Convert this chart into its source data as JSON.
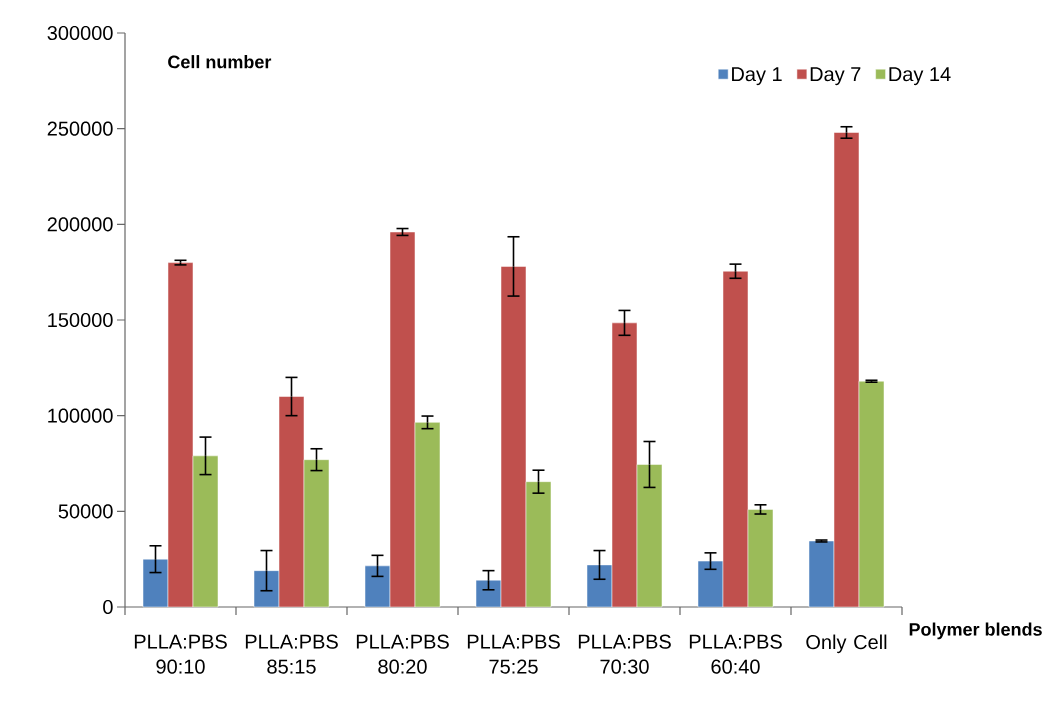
{
  "chart_data": {
    "type": "bar",
    "ylabel": "Cell number",
    "xlabel": "Polymer blends",
    "categories": [
      "PLLA:PBS 90:10",
      "PLLA:PBS 85:15",
      "PLLA:PBS 80:20",
      "PLLA:PBS 75:25",
      "PLLA:PBS 70:30",
      "PLLA:PBS 60:40",
      "Only Cell"
    ],
    "series": [
      {
        "name": "Day 1",
        "color": "#4f81bd",
        "values": [
          25000,
          19000,
          21500,
          14000,
          22000,
          24000,
          34500
        ],
        "errors": [
          7000,
          10500,
          5500,
          5000,
          7500,
          4300,
          500
        ]
      },
      {
        "name": "Day 7",
        "color": "#c0504d",
        "values": [
          180000,
          110000,
          196000,
          178000,
          148500,
          175500,
          248000
        ],
        "errors": [
          1200,
          10000,
          1800,
          15500,
          6500,
          3700,
          3000
        ]
      },
      {
        "name": "Day 14",
        "color": "#9bbb59",
        "values": [
          79000,
          77000,
          96500,
          65500,
          74500,
          51000,
          118000
        ],
        "errors": [
          9800,
          5700,
          3300,
          6000,
          12000,
          2400,
          500
        ]
      }
    ],
    "ylim": [
      0,
      300000
    ],
    "yticks": [
      0,
      50000,
      100000,
      150000,
      200000,
      250000,
      300000
    ],
    "legend": "top right",
    "grid": false
  }
}
